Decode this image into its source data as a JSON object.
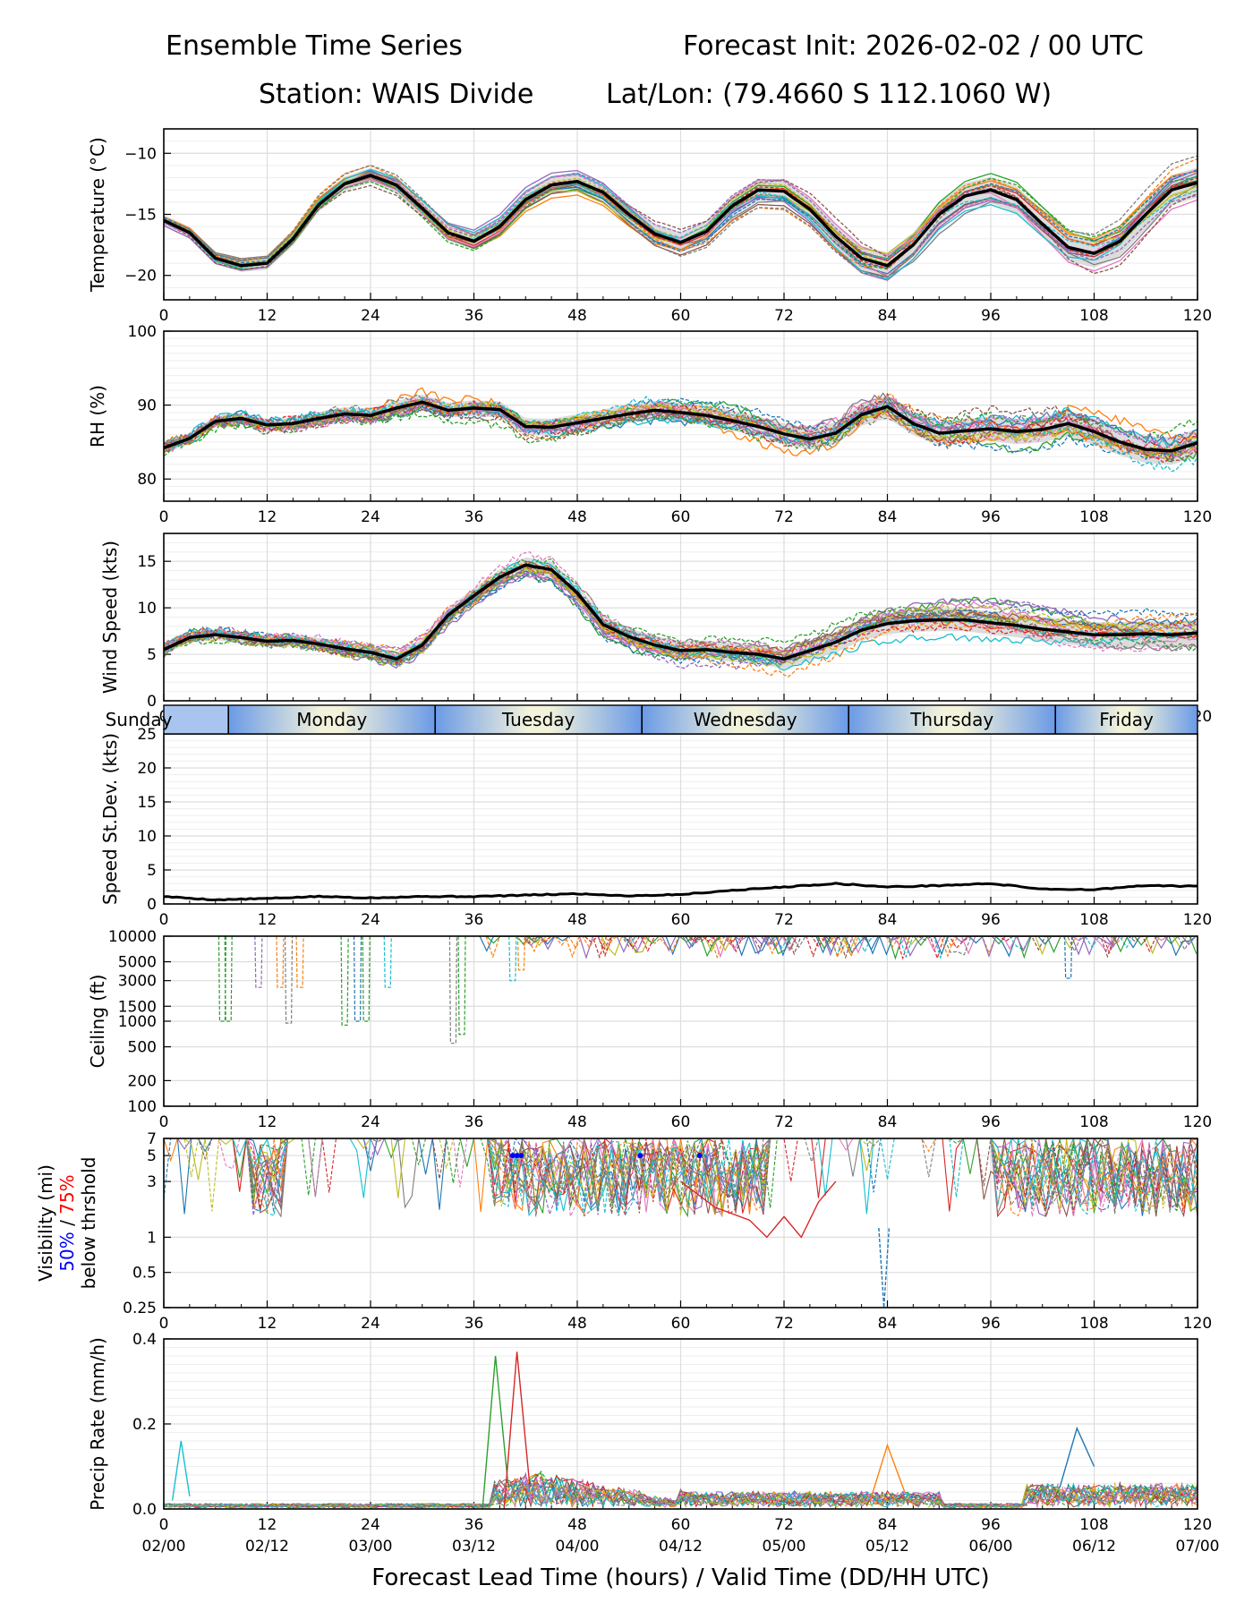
{
  "header": {
    "title_left": "Ensemble Time Series",
    "title_right": "Forecast Init: 2026-02-02 / 00 UTC",
    "station": "Station: WAIS Divide",
    "latlon": "Lat/Lon: (79.4660 S 112.1060 W)"
  },
  "x_axis": {
    "range": [
      0,
      120
    ],
    "ticks": [
      0,
      12,
      24,
      36,
      48,
      60,
      72,
      84,
      96,
      108,
      120
    ],
    "valid_time_labels": [
      "02/00",
      "02/12",
      "03/00",
      "03/12",
      "04/00",
      "04/12",
      "05/00",
      "05/12",
      "06/00",
      "06/12",
      "07/00"
    ],
    "label": "Forecast Lead Time (hours) / Valid Time (DD/HH UTC)"
  },
  "day_strip": {
    "days": [
      {
        "name": "Sunday",
        "start_h": 0,
        "end_h": 7.5
      },
      {
        "name": "Monday",
        "start_h": 7.5,
        "end_h": 31.5
      },
      {
        "name": "Tuesday",
        "start_h": 31.5,
        "end_h": 55.5
      },
      {
        "name": "Wednesday",
        "start_h": 55.5,
        "end_h": 79.5
      },
      {
        "name": "Thursday",
        "start_h": 79.5,
        "end_h": 103.5
      },
      {
        "name": "Friday",
        "start_h": 103.5,
        "end_h": 120
      }
    ]
  },
  "colors": {
    "mean": "#000000",
    "spread": "#d3d3d3",
    "members": [
      "#1f77b4",
      "#ff7f0e",
      "#2ca02c",
      "#d62728",
      "#9467bd",
      "#8c564b",
      "#e377c2",
      "#7f7f7f",
      "#bcbd22",
      "#17becf"
    ],
    "vis_50": "#0000ff",
    "vis_75": "#ff0000",
    "strip_blue": "#6a9ae6",
    "strip_cream": "#f3f3dc"
  },
  "panels": {
    "temp": {
      "ylabel": "Temperature (°C)",
      "ticks": [
        -10,
        -15,
        -20
      ]
    },
    "rh": {
      "ylabel": "RH (%)",
      "ticks": [
        80,
        90,
        100
      ]
    },
    "wind": {
      "ylabel": "Wind Speed (kts)",
      "ticks": [
        0,
        5,
        10,
        15
      ]
    },
    "sd": {
      "ylabel": "Speed St.Dev. (kts)",
      "ticks": [
        0,
        5,
        10,
        15,
        20,
        25
      ]
    },
    "ceiling": {
      "ylabel": "Ceiling (ft)",
      "ticks": [
        100,
        200,
        500,
        1000,
        1500,
        3000,
        5000,
        10000
      ]
    },
    "vis": {
      "ylabel": "Visibility (mi)",
      "ylabel_50": "50%",
      "ylabel_sep": " / ",
      "ylabel_75": "75%",
      "ylabel_sub": "below thrshold",
      "ticks": [
        0.25,
        0.5,
        1,
        3,
        5,
        7
      ]
    },
    "precip": {
      "ylabel": "Precip Rate (mm/h)",
      "ticks": [
        0.0,
        0.2,
        0.4
      ]
    }
  },
  "chart_data": [
    {
      "type": "line",
      "panel": "temp",
      "ylabel": "Temperature (°C)",
      "ylim": [
        -22,
        -8
      ],
      "series": [
        {
          "name": "ensemble mean",
          "x": [
            0,
            3,
            6,
            9,
            12,
            15,
            18,
            21,
            24,
            27,
            30,
            33,
            36,
            39,
            42,
            45,
            48,
            51,
            54,
            57,
            60,
            63,
            66,
            69,
            72,
            75,
            78,
            81,
            84,
            87,
            90,
            93,
            96,
            99,
            102,
            105,
            108,
            111,
            114,
            117,
            120
          ],
          "y": [
            -15.5,
            -16.5,
            -18.6,
            -19.2,
            -19.0,
            -17.0,
            -14.2,
            -12.5,
            -11.8,
            -12.6,
            -14.5,
            -16.5,
            -17.2,
            -16.0,
            -13.8,
            -12.6,
            -12.3,
            -13.2,
            -15.0,
            -16.6,
            -17.3,
            -16.4,
            -14.3,
            -13.0,
            -13.1,
            -14.6,
            -16.8,
            -18.6,
            -19.2,
            -17.5,
            -15.0,
            -13.5,
            -13.0,
            -13.8,
            -15.8,
            -17.7,
            -18.2,
            -17.2,
            -15.0,
            -13.0,
            -12.4
          ]
        }
      ]
    },
    {
      "type": "line",
      "panel": "rh",
      "ylabel": "RH (%)",
      "ylim": [
        77,
        100
      ],
      "series": [
        {
          "name": "ensemble mean",
          "x": [
            0,
            3,
            6,
            9,
            12,
            15,
            18,
            21,
            24,
            27,
            30,
            33,
            36,
            39,
            42,
            45,
            48,
            51,
            54,
            57,
            60,
            63,
            66,
            69,
            72,
            75,
            78,
            81,
            84,
            87,
            90,
            93,
            96,
            99,
            102,
            105,
            108,
            111,
            114,
            117,
            120
          ],
          "y": [
            84.2,
            85.5,
            87.8,
            88.2,
            87.3,
            87.5,
            88.2,
            88.8,
            88.6,
            89.6,
            90.4,
            89.3,
            89.6,
            89.4,
            87.1,
            87.0,
            87.6,
            88.2,
            88.8,
            89.3,
            89.0,
            88.6,
            87.9,
            87.1,
            86.1,
            85.4,
            86.2,
            88.7,
            89.8,
            87.5,
            86.2,
            86.5,
            86.8,
            86.4,
            86.7,
            87.5,
            86.4,
            85.0,
            84.0,
            83.8,
            84.9
          ]
        }
      ]
    },
    {
      "type": "line",
      "panel": "wind",
      "ylabel": "Wind Speed (kts)",
      "ylim": [
        0,
        18
      ],
      "series": [
        {
          "name": "ensemble mean",
          "x": [
            0,
            3,
            6,
            9,
            12,
            15,
            18,
            21,
            24,
            27,
            30,
            33,
            36,
            39,
            42,
            45,
            48,
            51,
            54,
            57,
            60,
            63,
            66,
            69,
            72,
            75,
            78,
            81,
            84,
            87,
            90,
            93,
            96,
            99,
            102,
            105,
            108,
            111,
            114,
            117,
            120
          ],
          "y": [
            5.5,
            6.8,
            7.1,
            6.8,
            6.4,
            6.5,
            6.1,
            5.6,
            5.2,
            4.5,
            6.0,
            9.2,
            11.3,
            13.3,
            14.6,
            14.1,
            11.6,
            8.2,
            6.9,
            6.0,
            5.4,
            5.5,
            5.2,
            5.0,
            4.5,
            5.4,
            6.3,
            7.6,
            8.3,
            8.6,
            8.7,
            8.7,
            8.4,
            8.1,
            7.7,
            7.4,
            7.1,
            7.1,
            7.2,
            7.1,
            7.3
          ]
        }
      ]
    },
    {
      "type": "line",
      "panel": "sd",
      "ylabel": "Speed St.Dev. (kts)",
      "ylim": [
        0,
        25
      ],
      "series": [
        {
          "name": "ensemble spread",
          "x": [
            0,
            6,
            12,
            18,
            24,
            30,
            36,
            42,
            48,
            54,
            60,
            66,
            72,
            78,
            84,
            90,
            96,
            102,
            108,
            114,
            120
          ],
          "y": [
            1.1,
            0.6,
            0.8,
            1.1,
            0.9,
            1.1,
            1.1,
            1.3,
            1.5,
            1.2,
            1.4,
            2.0,
            2.5,
            3.0,
            2.5,
            2.7,
            3.0,
            2.2,
            2.1,
            2.7,
            2.6
          ]
        }
      ]
    },
    {
      "type": "line",
      "panel": "ceiling",
      "ylabel": "Ceiling (ft)",
      "ylim": [
        100,
        10000
      ],
      "yscale": "log",
      "series": [
        {
          "name": "member dip 1",
          "x": [
            6.5,
            7.2,
            8.0
          ],
          "y": [
            1000,
            1000,
            1000
          ]
        },
        {
          "name": "member dip 2",
          "x": [
            20.9,
            22.0
          ],
          "y": [
            900,
            900
          ]
        },
        {
          "name": "member dip 3",
          "x": [
            33.6,
            34.6
          ],
          "y": [
            550,
            600
          ]
        }
      ]
    },
    {
      "type": "line",
      "panel": "vis",
      "ylabel": "Visibility (mi)",
      "ylim": [
        0.25,
        7
      ],
      "yscale": "log",
      "series": [
        {
          "name": "member red",
          "x": [
            60,
            64,
            68,
            70,
            72,
            74,
            76,
            78
          ],
          "y": [
            3,
            1.8,
            1.4,
            1.0,
            1.5,
            1.0,
            2.0,
            3.0
          ]
        },
        {
          "name": "member blue dip",
          "x": [
            83,
            83.6,
            84.2
          ],
          "y": [
            1.2,
            0.25,
            1.2
          ]
        }
      ]
    },
    {
      "type": "line",
      "panel": "precip",
      "ylabel": "Precip Rate (mm/h)",
      "ylim": [
        0,
        0.4
      ],
      "series": [
        {
          "name": "member peak A",
          "x": [
            37,
            38.5,
            40
          ],
          "y": [
            0.0,
            0.36,
            0.05
          ]
        },
        {
          "name": "member peak B",
          "x": [
            39.5,
            41,
            42.5
          ],
          "y": [
            0.0,
            0.37,
            0.05
          ]
        },
        {
          "name": "member peak C",
          "x": [
            1,
            2,
            3
          ],
          "y": [
            0.02,
            0.16,
            0.03
          ]
        },
        {
          "name": "member peak D",
          "x": [
            104,
            106,
            108
          ],
          "y": [
            0.05,
            0.19,
            0.1
          ]
        },
        {
          "name": "member peak E",
          "x": [
            82,
            84,
            86
          ],
          "y": [
            0.02,
            0.15,
            0.04
          ]
        }
      ]
    }
  ]
}
